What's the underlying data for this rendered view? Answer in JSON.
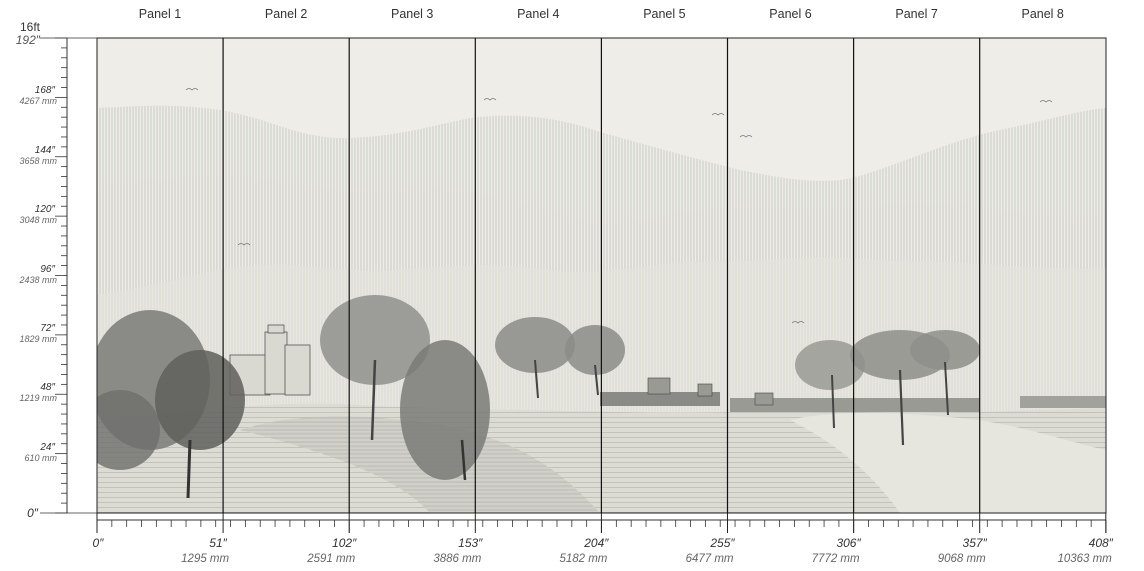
{
  "panels": [
    "Panel 1",
    "Panel 2",
    "Panel 3",
    "Panel 4",
    "Panel 5",
    "Panel 6",
    "Panel 7",
    "Panel 8"
  ],
  "vertical_scale": {
    "top_unit": "16ft",
    "top_value": "192″",
    "marks": [
      {
        "in": "168″",
        "mm": "4267 mm"
      },
      {
        "in": "144″",
        "mm": "3658 mm"
      },
      {
        "in": "120″",
        "mm": "3048 mm"
      },
      {
        "in": "96″",
        "mm": "2438 mm"
      },
      {
        "in": "72″",
        "mm": "1829 mm"
      },
      {
        "in": "48″",
        "mm": "1219 mm"
      },
      {
        "in": "24″",
        "mm": "610 mm"
      }
    ],
    "zero": "0″"
  },
  "horizontal_scale": {
    "zero": "0″",
    "marks": [
      {
        "in": "51″",
        "mm": "1295 mm"
      },
      {
        "in": "102″",
        "mm": "2591 mm"
      },
      {
        "in": "153″",
        "mm": "3886 mm"
      },
      {
        "in": "204″",
        "mm": "5182 mm"
      },
      {
        "in": "255″",
        "mm": "6477 mm"
      },
      {
        "in": "306″",
        "mm": "7772 mm"
      },
      {
        "in": "357″",
        "mm": "9068 mm"
      },
      {
        "in": "408″",
        "mm": "10363 mm"
      }
    ]
  },
  "colors": {
    "sky": "#eeede7",
    "hatch": "#b8b8b2",
    "tree": "#6b6b68",
    "ground": "#c9c9c2",
    "panel_line": "#111111"
  }
}
